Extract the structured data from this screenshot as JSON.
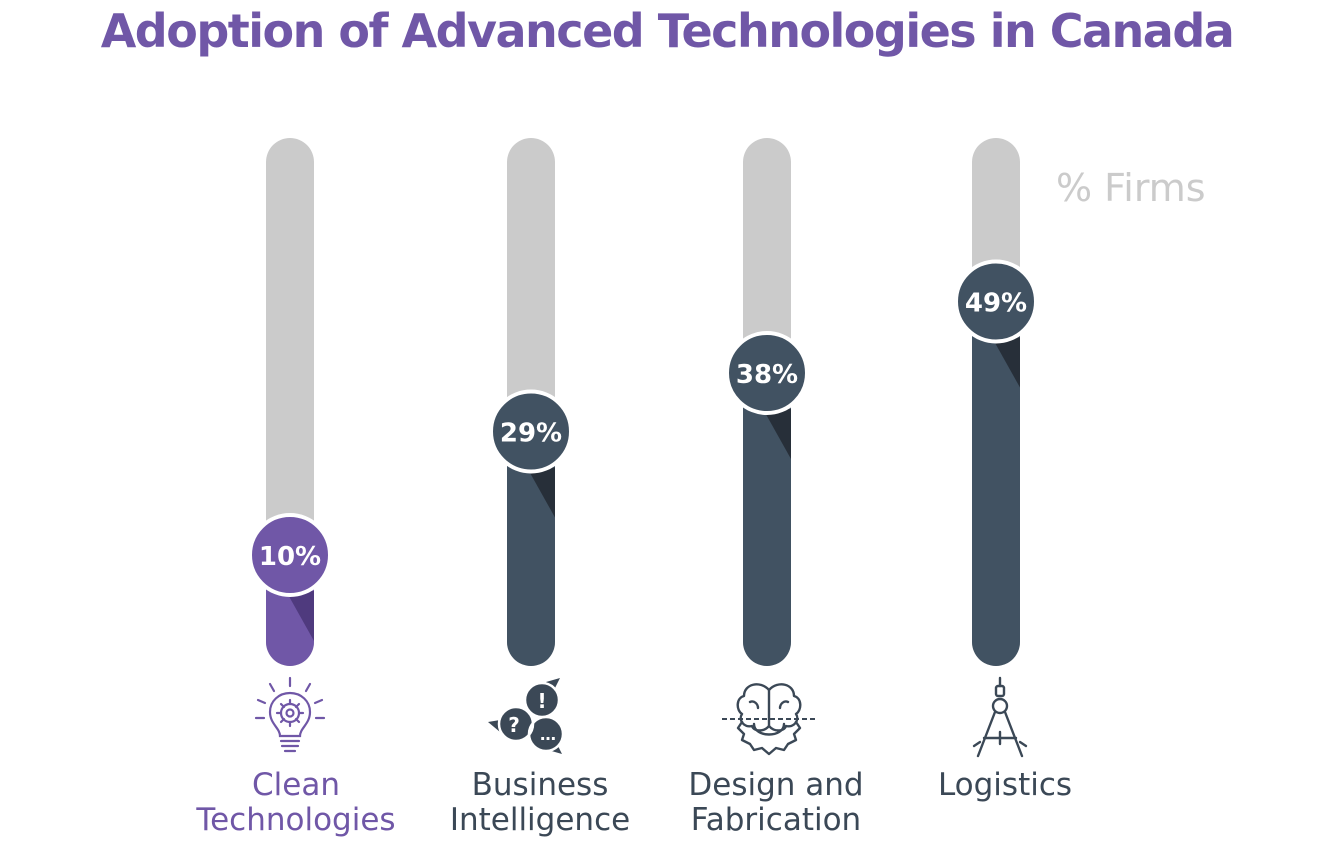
{
  "title": "Adoption of Advanced Technologies in Canada",
  "unit_label": "% Firms",
  "colors": {
    "title": "#7057a7",
    "track": "#cbcbcb",
    "highlight": "#7057a7",
    "highlight_shadow": "#4f3a7e",
    "default": "#415262",
    "default_shadow": "#272f39",
    "label_dark": "#3b4856",
    "unit_label": "#cbcbcb"
  },
  "chart_data": {
    "type": "bar",
    "orientation": "vertical",
    "ylabel": "% Firms",
    "ylim": [
      0,
      100
    ],
    "categories": [
      "Clean Technologies",
      "Business Intelligence",
      "Design and Fabrication",
      "Logistics"
    ],
    "values": [
      10,
      29,
      38,
      49
    ],
    "data_labels": [
      "10%",
      "29%",
      "38%",
      "49%"
    ],
    "highlighted_category": "Clean Technologies",
    "grid": false,
    "legend": "none"
  },
  "categories": [
    {
      "label": "Clean\nTechnologies",
      "icon": "lightbulb-gear-icon",
      "highlight": true
    },
    {
      "label": "Business\nIntelligence",
      "icon": "speech-bubbles-icon",
      "highlight": false
    },
    {
      "label": "Design and\nFabrication",
      "icon": "brain-gear-icon",
      "highlight": false
    },
    {
      "label": "Logistics",
      "icon": "drafting-compass-icon",
      "highlight": false
    }
  ]
}
